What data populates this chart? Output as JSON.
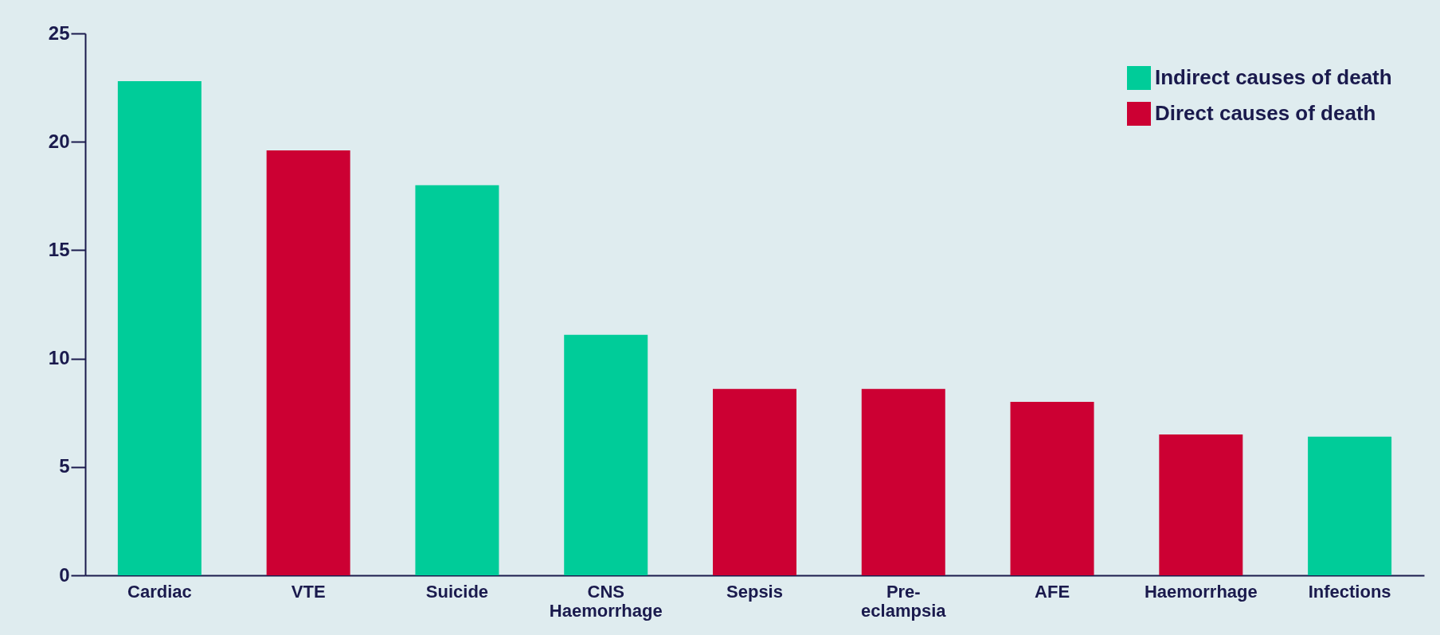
{
  "chart_data": {
    "type": "bar",
    "categories": [
      "Cardiac",
      "VTE",
      "Suicide",
      "CNS\nHaemorrhage",
      "Sepsis",
      "Pre-\neclampsia",
      "AFE",
      "Haemorrhage",
      "Infections"
    ],
    "series": [
      {
        "name": "Indirect causes of death",
        "color": "#00cc99",
        "values": [
          22.8,
          null,
          18.0,
          11.1,
          null,
          null,
          null,
          null,
          6.4
        ]
      },
      {
        "name": "Direct causes of death",
        "color": "#cc0033",
        "values": [
          null,
          19.6,
          null,
          null,
          8.6,
          8.6,
          8.0,
          6.5,
          null
        ]
      }
    ],
    "ylim": [
      0,
      25
    ],
    "yticks": [
      0,
      5,
      10,
      15,
      20,
      25
    ],
    "grid": false,
    "legend": "top right"
  }
}
